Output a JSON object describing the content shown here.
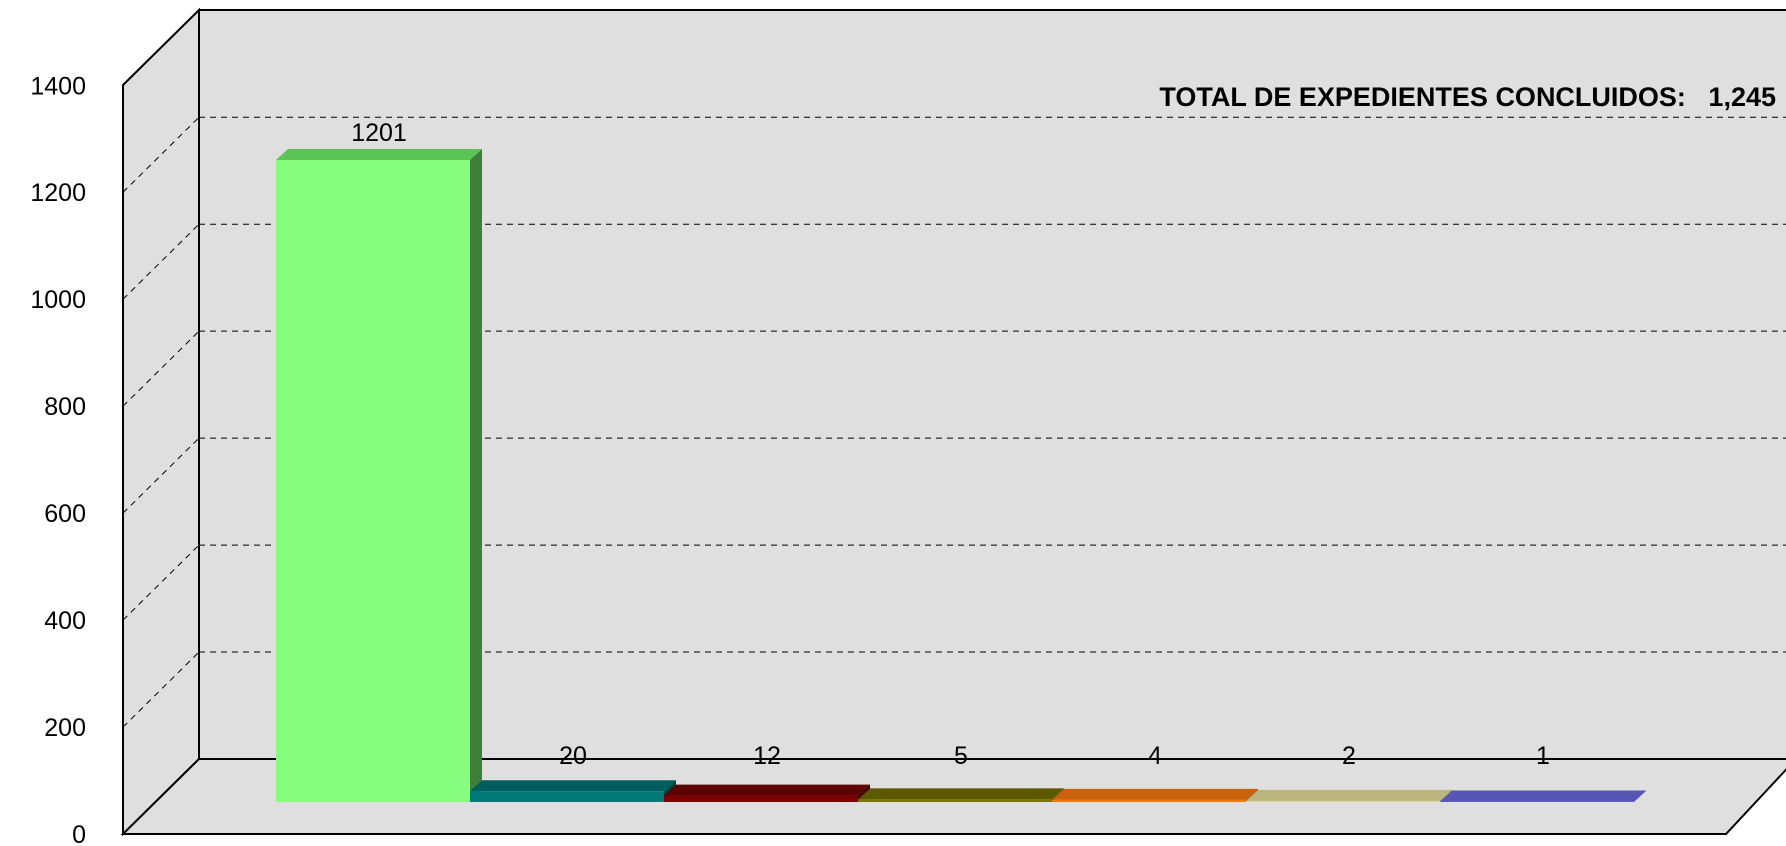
{
  "chart_data": {
    "type": "bar",
    "title": "",
    "xlabel": "",
    "ylabel": "",
    "ylim": [
      0,
      1400
    ],
    "yticks": [
      0,
      200,
      400,
      600,
      800,
      1000,
      1200,
      1400
    ],
    "ytick_labels": [
      "0",
      "200",
      "400",
      "600",
      "800",
      "1000",
      "1200",
      "1400"
    ],
    "grid": true,
    "three_d": true,
    "annotation": "TOTAL DE EXPEDIENTES CONCLUIDOS:   1,245",
    "values": [
      1201,
      20,
      12,
      5,
      4,
      2,
      1
    ],
    "data_labels": [
      "1201",
      "20",
      "12",
      "5",
      "4",
      "2",
      "1"
    ],
    "colors": [
      {
        "front": "#86fd7f",
        "top": "#5cc455",
        "side": "#3e7f3a"
      },
      {
        "front": "#007a78",
        "top": "#005f5d",
        "side": "#004443"
      },
      {
        "front": "#7c0000",
        "top": "#5c0000",
        "side": "#400000"
      },
      {
        "front": "#7a7700",
        "top": "#5c5900",
        "side": "#404000"
      },
      {
        "front": "#f07a10",
        "top": "#c9620a",
        "side": "#9e4c08"
      },
      {
        "front": "#d9d69e",
        "top": "#b9b57c",
        "side": "#9e9a64"
      },
      {
        "front": "#6c6ad6",
        "top": "#5756b4",
        "side": "#444391"
      }
    ],
    "wall_color": "#dfdfdf"
  }
}
